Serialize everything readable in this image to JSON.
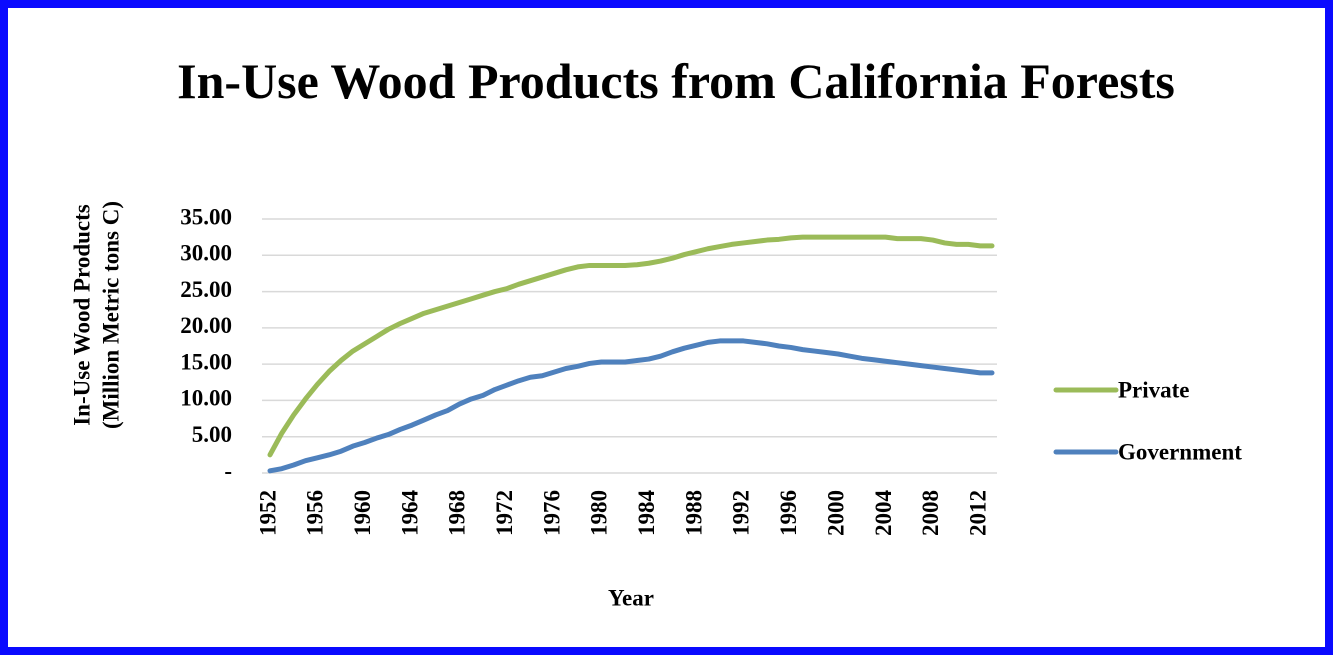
{
  "chart_data": {
    "type": "line",
    "title": "In-Use Wood Products from California Forests",
    "ylabel": [
      "In-Use Wood Products",
      "(Million Metric tons C)"
    ],
    "xlabel": "Year",
    "x": [
      1952,
      1953,
      1954,
      1955,
      1956,
      1957,
      1958,
      1959,
      1960,
      1961,
      1962,
      1963,
      1964,
      1965,
      1966,
      1967,
      1968,
      1969,
      1970,
      1971,
      1972,
      1973,
      1974,
      1975,
      1976,
      1977,
      1978,
      1979,
      1980,
      1981,
      1982,
      1983,
      1984,
      1985,
      1986,
      1987,
      1988,
      1989,
      1990,
      1991,
      1992,
      1993,
      1994,
      1995,
      1996,
      1997,
      1998,
      1999,
      2000,
      2001,
      2002,
      2003,
      2004,
      2005,
      2006,
      2007,
      2008,
      2009,
      2010,
      2011,
      2012,
      2013
    ],
    "series": [
      {
        "name": "Private",
        "color": "#9bbb59",
        "values": [
          2.5,
          5.5,
          8,
          10.2,
          12.2,
          14,
          15.5,
          16.8,
          17.8,
          18.8,
          19.8,
          20.6,
          21.3,
          22,
          22.5,
          23,
          23.5,
          24,
          24.5,
          25,
          25.4,
          26,
          26.5,
          27,
          27.5,
          28,
          28.4,
          28.6,
          28.6,
          28.6,
          28.6,
          28.7,
          28.9,
          29.2,
          29.6,
          30.1,
          30.5,
          30.9,
          31.2,
          31.5,
          31.7,
          31.9,
          32.1,
          32.2,
          32.4,
          32.5,
          32.5,
          32.5,
          32.5,
          32.5,
          32.5,
          32.5,
          32.5,
          32.3,
          32.3,
          32.3,
          32.1,
          31.7,
          31.5,
          31.5,
          31.3,
          31.3
        ]
      },
      {
        "name": "Government",
        "color": "#4f81bd",
        "values": [
          0.3,
          0.6,
          1.1,
          1.7,
          2.1,
          2.5,
          3,
          3.7,
          4.2,
          4.8,
          5.3,
          6,
          6.6,
          7.3,
          8,
          8.6,
          9.5,
          10.2,
          10.7,
          11.5,
          12.1,
          12.7,
          13.2,
          13.4,
          13.9,
          14.4,
          14.7,
          15.1,
          15.3,
          15.3,
          15.3,
          15.5,
          15.7,
          16.1,
          16.7,
          17.2,
          17.6,
          18,
          18.2,
          18.2,
          18.2,
          18,
          17.8,
          17.5,
          17.3,
          17,
          16.8,
          16.6,
          16.4,
          16.1,
          15.8,
          15.6,
          15.4,
          15.2,
          15,
          14.8,
          14.6,
          14.4,
          14.2,
          14,
          13.8,
          13.8
        ]
      }
    ],
    "xlim": [
      1952,
      2013
    ],
    "xticks": [
      1952,
      1956,
      1960,
      1964,
      1968,
      1972,
      1976,
      1980,
      1984,
      1988,
      1992,
      1996,
      2000,
      2004,
      2008,
      2012
    ],
    "ylim": [
      0,
      35
    ],
    "yticks": [
      {
        "value": 0,
        "label": "-"
      },
      {
        "value": 5,
        "label": "5.00"
      },
      {
        "value": 10,
        "label": "10.00"
      },
      {
        "value": 15,
        "label": "15.00"
      },
      {
        "value": 20,
        "label": "20.00"
      },
      {
        "value": 25,
        "label": "25.00"
      },
      {
        "value": 30,
        "label": "30.00"
      },
      {
        "value": 35,
        "label": "35.00"
      }
    ],
    "grid": true,
    "legend": "right"
  }
}
